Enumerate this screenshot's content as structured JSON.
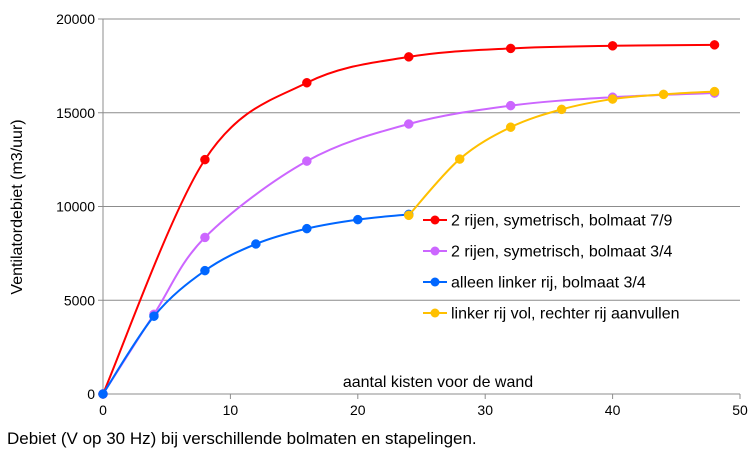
{
  "caption": "Debiet (V op 30 Hz) bij verschillende bolmaten en stapelingen.",
  "chart_data": {
    "type": "line",
    "title": "",
    "xlabel": "aantal kisten voor de wand",
    "ylabel": "Ventilatordebiet (m3/uur)",
    "xlim": [
      0,
      50
    ],
    "ylim": [
      0,
      20000
    ],
    "x_ticks": [
      0,
      10,
      20,
      30,
      40,
      50
    ],
    "y_ticks": [
      0,
      5000,
      10000,
      15000,
      20000
    ],
    "grid": "horizontal",
    "legend_position": "right-middle",
    "series": [
      {
        "name": "2 rijen, symetrisch, bolmaat 7/9",
        "color": "#ff0000",
        "x": [
          0,
          8,
          16,
          24,
          32,
          40,
          48
        ],
        "y": [
          0,
          12500,
          16600,
          17980,
          18430,
          18570,
          18620
        ]
      },
      {
        "name": "2 rijen, symetrisch, bolmaat 3/4",
        "color": "#cc66ff",
        "x": [
          0,
          4,
          8,
          16,
          24,
          32,
          40,
          48
        ],
        "y": [
          0,
          4250,
          8350,
          12420,
          14400,
          15380,
          15830,
          16050
        ]
      },
      {
        "name": "alleen linker rij, bolmaat 3/4",
        "color": "#0066ff",
        "x": [
          0,
          4,
          8,
          12,
          16,
          20,
          24
        ],
        "y": [
          0,
          4150,
          6580,
          8000,
          8820,
          9300,
          9580
        ]
      },
      {
        "name": "linker rij vol, rechter rij aanvullen",
        "color": "#ffc000",
        "x": [
          24,
          28,
          32,
          36,
          40,
          44,
          48
        ],
        "y": [
          9530,
          12530,
          14230,
          15180,
          15730,
          15980,
          16130
        ]
      }
    ]
  }
}
